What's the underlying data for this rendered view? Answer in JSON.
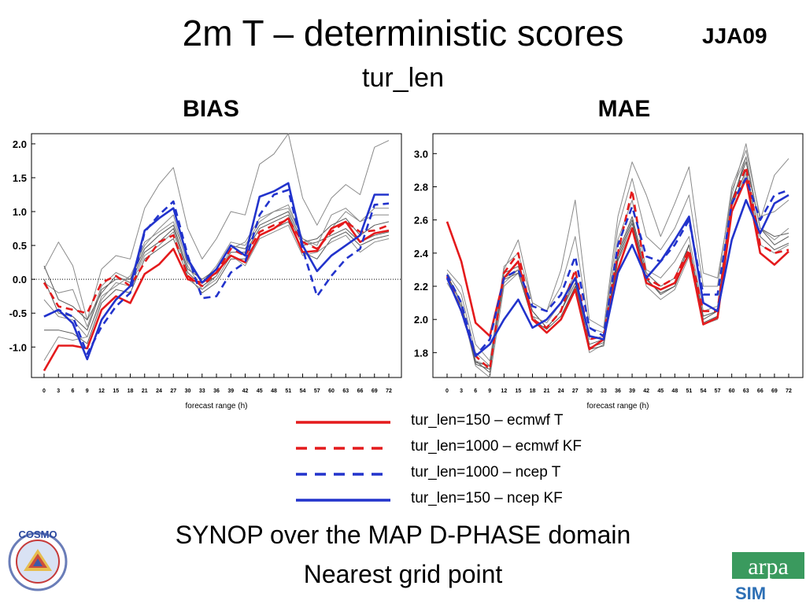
{
  "title": "2m T – deterministic scores",
  "season": "JJA09",
  "subtitle": "tur_len",
  "footer": {
    "line1": "SYNOP over the MAP D-PHASE domain",
    "line2": "Nearest grid point"
  },
  "logos": {
    "cosmo_text": "COSMO",
    "arpa_text": "arpa",
    "arpa_sub": "SIM"
  },
  "legend": [
    {
      "label": "tur_len=150 – ecmwf T",
      "color": "#e41a1c",
      "dashed": false
    },
    {
      "label": "tur_len=1000 – ecmwf KF",
      "color": "#e41a1c",
      "dashed": true
    },
    {
      "label": "tur_len=1000 – ncep T",
      "color": "#2233cc",
      "dashed": true
    },
    {
      "label": "tur_len=150 – ncep KF",
      "color": "#2233cc",
      "dashed": false
    }
  ],
  "chart_data": [
    {
      "type": "line",
      "title": "BIAS",
      "xlabel": "forecast range (h)",
      "x": [
        0,
        3,
        6,
        9,
        12,
        15,
        18,
        21,
        24,
        27,
        30,
        33,
        36,
        39,
        42,
        45,
        48,
        51,
        54,
        57,
        60,
        63,
        66,
        69,
        72
      ],
      "ylim": [
        -1.45,
        2.15
      ],
      "yticks": [
        "2.0",
        "1.5",
        "1.0",
        "0.5",
        "0.0",
        "-0.5",
        "-1.0"
      ],
      "ytick_values": [
        2.0,
        1.5,
        1.0,
        0.5,
        0.0,
        -0.5,
        -1.0
      ],
      "zero_line": true,
      "series": [
        {
          "color": "#e41a1c",
          "dashed": false,
          "values": [
            -1.35,
            -0.98,
            -0.98,
            -1.02,
            -0.45,
            -0.25,
            -0.35,
            0.08,
            0.22,
            0.45,
            0.0,
            -0.05,
            0.1,
            0.35,
            0.25,
            0.65,
            0.75,
            0.9,
            0.4,
            0.42,
            0.75,
            0.85,
            0.55,
            0.68,
            0.72
          ]
        },
        {
          "color": "#e41a1c",
          "dashed": true,
          "values": [
            -0.05,
            -0.4,
            -0.45,
            -0.5,
            -0.05,
            0.05,
            -0.1,
            0.25,
            0.55,
            0.65,
            0.05,
            -0.1,
            0.1,
            0.45,
            0.35,
            0.7,
            0.8,
            0.88,
            0.55,
            0.45,
            0.7,
            0.85,
            0.7,
            0.72,
            0.8
          ]
        },
        {
          "color": "#2233cc",
          "dashed": true,
          "values": [
            -0.55,
            -0.45,
            -0.55,
            -1.1,
            -0.7,
            -0.4,
            -0.2,
            0.7,
            0.95,
            1.15,
            0.35,
            -0.28,
            -0.25,
            0.1,
            0.25,
            0.95,
            1.25,
            1.32,
            0.45,
            -0.25,
            0.05,
            0.3,
            0.45,
            1.1,
            1.12
          ]
        },
        {
          "color": "#2233cc",
          "dashed": false,
          "values": [
            -0.55,
            -0.45,
            -0.65,
            -1.18,
            -0.6,
            -0.3,
            -0.1,
            0.72,
            0.9,
            1.05,
            0.3,
            -0.05,
            0.15,
            0.5,
            0.35,
            1.22,
            1.3,
            1.42,
            0.5,
            0.12,
            0.35,
            0.5,
            0.65,
            1.25,
            1.25
          ]
        },
        {
          "color": "#8a8a8a",
          "dashed": false,
          "values": [
            0.15,
            0.55,
            0.2,
            -0.6,
            0.15,
            0.35,
            0.3,
            1.05,
            1.4,
            1.65,
            0.75,
            0.3,
            0.6,
            1.0,
            0.95,
            1.7,
            1.85,
            2.15,
            1.2,
            0.8,
            1.2,
            1.4,
            1.25,
            1.95,
            2.05
          ]
        },
        {
          "color": "#8a8a8a",
          "dashed": false,
          "values": [
            -0.05,
            -0.2,
            -0.15,
            -0.7,
            -0.1,
            0.1,
            0.0,
            0.55,
            0.7,
            0.85,
            0.25,
            -0.05,
            0.2,
            0.55,
            0.5,
            0.85,
            1.0,
            1.05,
            0.6,
            0.45,
            0.75,
            1.0,
            0.85,
            1.05,
            1.05
          ]
        },
        {
          "color": "#5a5a5a",
          "dashed": false,
          "values": [
            0.2,
            -0.3,
            -0.4,
            -0.6,
            -0.2,
            0.05,
            -0.05,
            0.4,
            0.55,
            0.75,
            0.1,
            -0.1,
            0.05,
            0.4,
            0.4,
            0.75,
            0.85,
            0.95,
            0.5,
            0.55,
            0.65,
            0.75,
            0.55,
            0.65,
            0.7
          ]
        },
        {
          "color": "#5a5a5a",
          "dashed": false,
          "values": [
            -0.75,
            -0.75,
            -0.8,
            -0.95,
            -0.35,
            -0.15,
            -0.2,
            0.3,
            0.45,
            0.6,
            0.05,
            -0.2,
            -0.05,
            0.3,
            0.3,
            0.65,
            0.75,
            0.85,
            0.4,
            0.3,
            0.6,
            0.7,
            0.5,
            0.6,
            0.65
          ]
        },
        {
          "color": "#8a8a8a",
          "dashed": false,
          "values": [
            -1.2,
            -0.85,
            -0.9,
            -0.85,
            -0.3,
            -0.05,
            -0.1,
            0.35,
            0.5,
            0.7,
            0.0,
            -0.15,
            0.0,
            0.35,
            0.2,
            0.6,
            0.7,
            0.8,
            0.35,
            0.4,
            0.55,
            0.65,
            0.4,
            0.55,
            0.6
          ]
        },
        {
          "color": "#5a5a5a",
          "dashed": false,
          "values": [
            0.0,
            -0.5,
            -0.55,
            -0.75,
            -0.15,
            0.0,
            0.0,
            0.45,
            0.65,
            0.8,
            0.15,
            0.0,
            0.15,
            0.5,
            0.45,
            0.8,
            0.9,
            1.0,
            0.55,
            0.6,
            0.8,
            0.9,
            0.65,
            0.8,
            0.85
          ]
        },
        {
          "color": "#8a8a8a",
          "dashed": false,
          "values": [
            -0.3,
            -0.55,
            -0.6,
            -0.85,
            -0.25,
            -0.1,
            0.05,
            0.5,
            0.75,
            0.95,
            0.2,
            -0.15,
            0.05,
            0.45,
            0.55,
            0.9,
            1.0,
            1.1,
            0.6,
            0.5,
            0.95,
            1.05,
            0.85,
            0.95,
            0.95
          ]
        }
      ]
    },
    {
      "type": "line",
      "title": "MAE",
      "xlabel": "forecast range (h)",
      "x": [
        0,
        3,
        6,
        9,
        12,
        15,
        18,
        21,
        24,
        27,
        30,
        33,
        36,
        39,
        42,
        45,
        48,
        51,
        54,
        57,
        60,
        63,
        66,
        69,
        72
      ],
      "ylim": [
        1.65,
        3.12
      ],
      "yticks": [
        "3.0",
        "2.8",
        "2.6",
        "2.4",
        "2.2",
        "2.0",
        "1.8"
      ],
      "ytick_values": [
        3.0,
        2.8,
        2.6,
        2.4,
        2.2,
        2.0,
        1.8
      ],
      "zero_line": false,
      "series": [
        {
          "color": "#e41a1c",
          "dashed": false,
          "values": [
            2.59,
            2.35,
            1.98,
            1.9,
            2.25,
            2.35,
            2.0,
            1.92,
            2.0,
            2.18,
            1.82,
            1.88,
            2.3,
            2.55,
            2.22,
            2.18,
            2.22,
            2.4,
            1.97,
            2.01,
            2.65,
            2.85,
            2.4,
            2.33,
            2.41
          ]
        },
        {
          "color": "#e41a1c",
          "dashed": true,
          "values": [
            2.26,
            2.05,
            1.78,
            1.7,
            2.28,
            2.4,
            2.0,
            1.95,
            2.05,
            2.3,
            1.88,
            1.9,
            2.4,
            2.78,
            2.25,
            2.2,
            2.25,
            2.42,
            2.05,
            2.05,
            2.7,
            2.92,
            2.45,
            2.4,
            2.42
          ]
        },
        {
          "color": "#2233cc",
          "dashed": true,
          "values": [
            2.27,
            2.1,
            1.78,
            1.88,
            2.25,
            2.3,
            2.08,
            2.05,
            2.15,
            2.38,
            1.95,
            1.9,
            2.45,
            2.68,
            2.38,
            2.35,
            2.45,
            2.6,
            2.15,
            2.15,
            2.7,
            2.85,
            2.6,
            2.75,
            2.78
          ]
        },
        {
          "color": "#2233cc",
          "dashed": false,
          "values": [
            2.25,
            2.05,
            1.78,
            1.85,
            2.0,
            2.12,
            1.95,
            2.0,
            2.1,
            2.25,
            1.9,
            1.88,
            2.28,
            2.45,
            2.25,
            2.35,
            2.48,
            2.62,
            2.1,
            2.05,
            2.48,
            2.72,
            2.52,
            2.7,
            2.75
          ]
        },
        {
          "color": "#8a8a8a",
          "dashed": false,
          "values": [
            2.28,
            2.15,
            1.8,
            1.72,
            2.3,
            2.48,
            2.1,
            2.05,
            2.3,
            2.72,
            2.0,
            1.95,
            2.62,
            2.95,
            2.75,
            2.5,
            2.7,
            2.92,
            2.28,
            2.25,
            2.75,
            3.06,
            2.6,
            2.87,
            2.97
          ]
        },
        {
          "color": "#5a5a5a",
          "dashed": false,
          "values": [
            2.26,
            2.1,
            1.75,
            1.68,
            2.28,
            2.32,
            2.05,
            1.95,
            2.05,
            2.25,
            1.83,
            1.86,
            2.38,
            2.6,
            2.25,
            2.15,
            2.2,
            2.45,
            2.0,
            2.05,
            2.7,
            2.98,
            2.55,
            2.45,
            2.5
          ]
        },
        {
          "color": "#8a8a8a",
          "dashed": false,
          "values": [
            2.22,
            2.08,
            1.72,
            1.65,
            2.2,
            2.28,
            2.02,
            1.92,
            2.0,
            2.2,
            1.8,
            1.85,
            2.35,
            2.55,
            2.2,
            2.12,
            2.18,
            2.38,
            1.97,
            2.0,
            2.65,
            2.88,
            2.45,
            2.4,
            2.45
          ]
        },
        {
          "color": "#5a5a5a",
          "dashed": false,
          "values": [
            2.27,
            2.1,
            1.73,
            1.7,
            2.25,
            2.3,
            2.05,
            1.95,
            2.05,
            2.22,
            1.85,
            1.88,
            2.4,
            2.62,
            2.28,
            2.2,
            2.25,
            2.45,
            2.02,
            2.05,
            2.72,
            2.95,
            2.55,
            2.5,
            2.52
          ]
        },
        {
          "color": "#8a8a8a",
          "dashed": false,
          "values": [
            2.25,
            2.1,
            1.75,
            1.72,
            2.22,
            2.3,
            2.02,
            1.98,
            2.1,
            2.28,
            1.88,
            1.9,
            2.48,
            2.72,
            2.3,
            2.25,
            2.35,
            2.5,
            2.05,
            2.08,
            2.78,
            2.98,
            2.55,
            2.48,
            2.55
          ]
        },
        {
          "color": "#5a5a5a",
          "dashed": false,
          "values": [
            2.24,
            2.08,
            1.74,
            1.72,
            2.24,
            2.28,
            2.0,
            1.94,
            2.02,
            2.2,
            1.82,
            1.84,
            2.36,
            2.58,
            2.24,
            2.16,
            2.2,
            2.4,
            1.98,
            2.02,
            2.68,
            2.9,
            2.5,
            2.42,
            2.46
          ]
        },
        {
          "color": "#8a8a8a",
          "dashed": false,
          "values": [
            2.3,
            2.2,
            1.85,
            1.75,
            2.32,
            2.4,
            2.1,
            2.05,
            2.2,
            2.5,
            1.95,
            1.92,
            2.55,
            2.85,
            2.5,
            2.42,
            2.55,
            2.75,
            2.2,
            2.2,
            2.8,
            3.02,
            2.62,
            2.65,
            2.72
          ]
        }
      ]
    }
  ]
}
